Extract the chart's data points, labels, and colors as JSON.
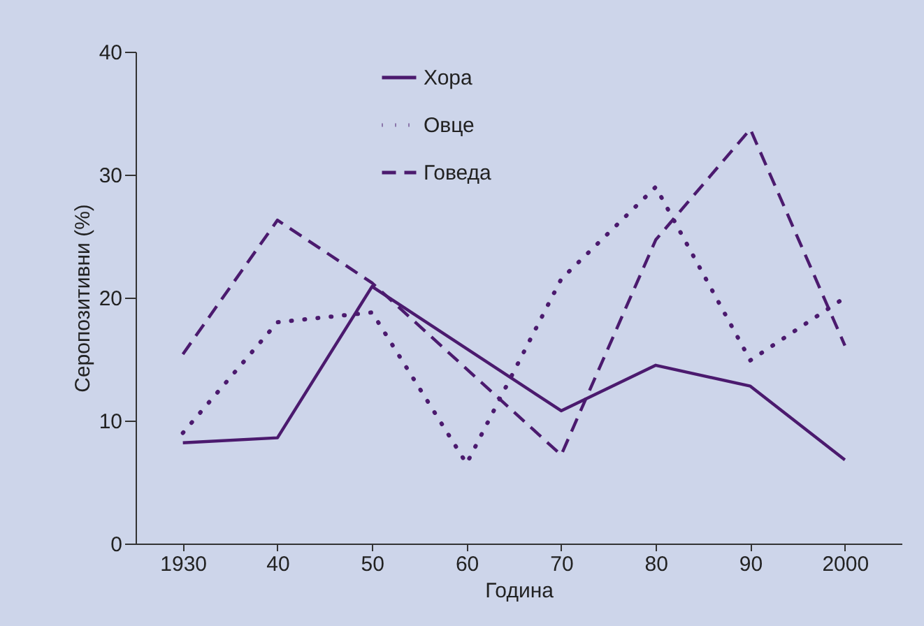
{
  "chart_data": {
    "type": "line",
    "xlabel": "Година",
    "ylabel": "Серопозитивни (%)",
    "xlim": [
      1925,
      2006
    ],
    "xticks": [
      1930,
      {
        "value": 1940,
        "label": "40"
      },
      {
        "value": 1950,
        "label": "50"
      },
      {
        "value": 1960,
        "label": "60"
      },
      {
        "value": 1970,
        "label": "70"
      },
      {
        "value": 1980,
        "label": "80"
      },
      {
        "value": 1990,
        "label": "90"
      },
      2000
    ],
    "ylim": [
      0,
      40
    ],
    "yticks": [
      0,
      10,
      20,
      30,
      40
    ],
    "grid": false,
    "legend": "top",
    "marker": "none",
    "series": [
      {
        "name": "Хора",
        "color": "#4b1a6e",
        "line_style": "solid",
        "x": [
          1930,
          1940,
          1950,
          1970,
          1980,
          1990,
          2000
        ],
        "values": [
          8.2,
          8.6,
          20.9,
          10.8,
          14.5,
          12.8,
          6.8
        ]
      },
      {
        "name": "Овце",
        "color": "#4b1a6e",
        "line_style": "dotted",
        "x": [
          1930,
          1940,
          1950,
          1960,
          1970,
          1980,
          1990,
          2000
        ],
        "values": [
          9.0,
          18.0,
          18.8,
          6.5,
          21.5,
          29.0,
          14.9,
          20.0
        ]
      },
      {
        "name": "Говеда",
        "color": "#4b1a6e",
        "line_style": "dashed",
        "x": [
          1930,
          1940,
          1950,
          1970,
          1980,
          1990,
          2000
        ],
        "values": [
          15.4,
          26.3,
          21.2,
          7.2,
          24.7,
          33.7,
          16.1
        ]
      }
    ]
  }
}
